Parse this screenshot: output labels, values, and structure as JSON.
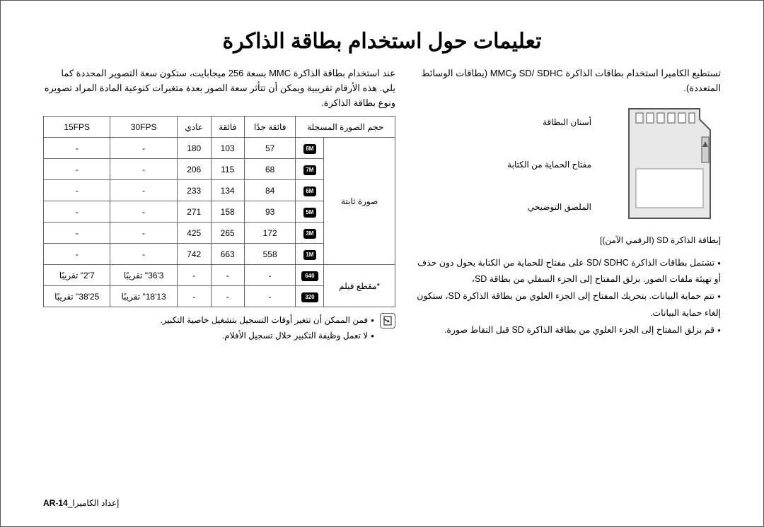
{
  "title": "تعليمات حول استخدام بطاقة الذاكرة",
  "intro_right": "تستطيع الكاميرا استخدام بطاقات الذاكرة SD/ SDHC وMMC (بطاقات الوسائط المتعددة).",
  "sd": {
    "label_teeth": "أسنان البطاقة",
    "label_write": "مفتاح الحماية من الكتابة",
    "label_sticker": "الملصق التوضيحي",
    "caption": "[بطاقة الذاكرة SD (الرقمي الآمن)]"
  },
  "bullets_right": [
    "تشتمل بطاقات الذاكرة SD/ SDHC على مفتاح للحماية من الكتابة يحول دون حذف أو تهيئة ملفات الصور. بزلق المفتاح إلى الجزء السفلي من بطاقة SD،",
    "تتم حماية البيانات. بتحريك المفتاح إلى الجزء العلوي من بطاقة الذاكرة SD، ستكون إلغاء حماية البيانات.",
    "قم بزلق المفتاح إلى الجزء العلوي من بطاقة الذاكرة SD قبل التقاط صورة."
  ],
  "note_left": "عند استخدام بطاقة الذاكرة MMC بسعة 256 ميجابايت، ستكون سعة التصوير المحددة كما يلي. هذه الأرقام تقريبية ويمكن أن تتأثر سعة الصور بعدة متغيرات كنوعية المادة المراد تصويره ونوع بطاقة الذاكرة.",
  "table": {
    "headers": {
      "size": "حجم الصورة المسجلة",
      "superfine": "فائقة جدًا",
      "fine": "فائقة",
      "normal": "عادي",
      "fps30": "30FPS",
      "fps15": "15FPS"
    },
    "vheaders": {
      "still": "صورة ثابتة",
      "movie": "*مقطع فيلم"
    },
    "photo_rows": [
      {
        "icon": "8M",
        "sf": "57",
        "f": "103",
        "n": "180"
      },
      {
        "icon": "7M",
        "sf": "68",
        "f": "115",
        "n": "206"
      },
      {
        "icon": "6M",
        "sf": "84",
        "f": "134",
        "n": "233"
      },
      {
        "icon": "5M",
        "sf": "93",
        "f": "158",
        "n": "271"
      },
      {
        "icon": "3M",
        "sf": "172",
        "f": "265",
        "n": "425"
      },
      {
        "icon": "1M",
        "sf": "558",
        "f": "663",
        "n": "742"
      }
    ],
    "movie_rows": [
      {
        "icon": "640",
        "fps30": "3'36\" تقريبًا",
        "fps15": "7'2\" تقريبًا"
      },
      {
        "icon": "320",
        "fps30": "13'18\" تقريبًا",
        "fps15": "25'38\" تقريبًا"
      }
    ]
  },
  "tnotes": [
    "فمن الممكن أن تتغير أوقات التسجيل بتشغيل خاصية التكبير.",
    "لا تعمل وظيفة التكبير خلال تسجيل الأفلام."
  ],
  "footer_page": "AR-14",
  "footer_label": "_إعداد الكاميرا"
}
